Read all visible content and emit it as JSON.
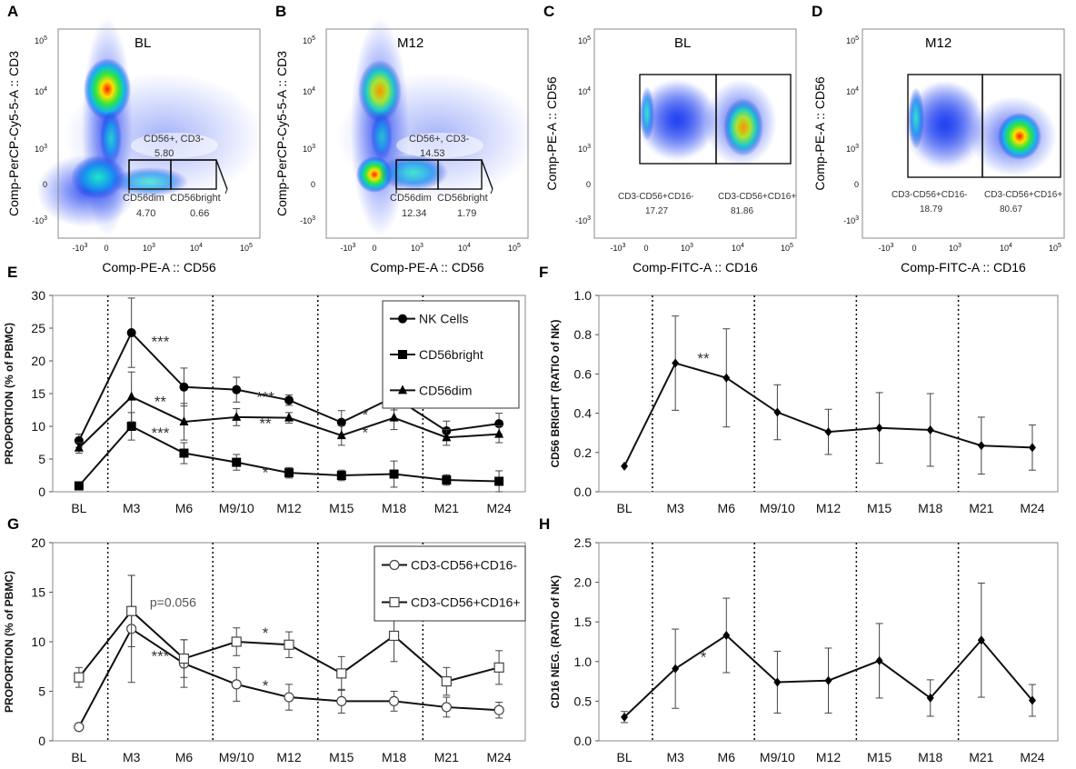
{
  "panels": {
    "A": "A",
    "B": "B",
    "C": "C",
    "D": "D",
    "E": "E",
    "F": "F",
    "G": "G",
    "H": "H"
  },
  "flow": {
    "A": {
      "title": "BL",
      "xlabel": "Comp-PE-A :: CD56",
      "ylabel": "Comp-PerCP-Cy5-5-A :: CD3",
      "gate_main_label": "CD56+, CD3-",
      "gate_main_value": "5.80",
      "gate_left_label": "CD56dim",
      "gate_left_value": "4.70",
      "gate_right_label": "CD56bright",
      "gate_right_value": "0.66"
    },
    "B": {
      "title": "M12",
      "xlabel": "Comp-PE-A :: CD56",
      "ylabel": "Comp-PerCP-Cy5-5-A :: CD3",
      "gate_main_label": "CD56+, CD3-",
      "gate_main_value": "14.53",
      "gate_left_label": "CD56dim",
      "gate_left_value": "12.34",
      "gate_right_label": "CD56bright",
      "gate_right_value": "1.79"
    },
    "C": {
      "title": "BL",
      "xlabel": "Comp-FITC-A :: CD16",
      "ylabel": "Comp-PE-A :: CD56",
      "gate_left_label": "CD3-CD56+CD16-",
      "gate_left_value": "17.27",
      "gate_right_label": "CD3-CD56+CD16+",
      "gate_right_value": "81.86"
    },
    "D": {
      "title": "M12",
      "xlabel": "Comp-FITC-A :: CD16",
      "ylabel": "Comp-PE-A :: CD56",
      "gate_left_label": "CD3-CD56+CD16-",
      "gate_left_value": "18.79",
      "gate_right_label": "CD3-CD56+CD16+",
      "gate_right_value": "80.67"
    }
  },
  "axis_ticks": {
    "exp": "5",
    "labels": [
      "-10",
      "0",
      "10",
      "10",
      "10",
      "10"
    ],
    "exps": [
      "3",
      "",
      "3",
      "4",
      "5",
      ""
    ]
  },
  "chart_data": [
    {
      "id": "E",
      "type": "line",
      "ylabel": "PROPORTION (% of PBMC)",
      "xlabel": "",
      "categories": [
        "BL",
        "M3",
        "M6",
        "M9/10",
        "M12",
        "M15",
        "M18",
        "M21",
        "M24"
      ],
      "ylim": [
        0,
        30
      ],
      "yticks": [
        "0",
        "5",
        "10",
        "15",
        "20",
        "25",
        "30"
      ],
      "series": [
        {
          "name": "NK Cells",
          "marker": "circle",
          "values": [
            7.8,
            24.3,
            16.0,
            15.6,
            14.0,
            10.6,
            14.5,
            9.3,
            10.4
          ],
          "err": [
            1.0,
            5.3,
            2.9,
            1.9,
            0.8,
            1.8,
            2.0,
            1.5,
            1.6
          ]
        },
        {
          "name": "CD56bright",
          "marker": "square",
          "values": [
            0.9,
            10.0,
            5.9,
            4.5,
            2.9,
            2.5,
            2.7,
            1.8,
            1.6
          ],
          "err": [
            0.6,
            2.1,
            1.6,
            1.2,
            0.8,
            0.8,
            2.0,
            0.8,
            1.6
          ]
        },
        {
          "name": "CD56dim",
          "marker": "triangle",
          "values": [
            6.7,
            14.5,
            10.7,
            11.4,
            11.3,
            8.6,
            11.3,
            8.3,
            8.8
          ],
          "err": [
            0.8,
            3.8,
            2.8,
            1.3,
            0.8,
            1.5,
            1.8,
            1.2,
            1.3
          ]
        }
      ],
      "annotations": [
        {
          "text": "***",
          "x": 1.55,
          "y": 23.0
        },
        {
          "text": "**",
          "x": 1.55,
          "y": 13.8
        },
        {
          "text": "***",
          "x": 1.55,
          "y": 9.0
        },
        {
          "text": "***",
          "x": 3.55,
          "y": 14.5
        },
        {
          "text": "**",
          "x": 3.55,
          "y": 10.5
        },
        {
          "text": "*",
          "x": 3.55,
          "y": 3.0
        },
        {
          "text": "*",
          "x": 5.45,
          "y": 11.8
        },
        {
          "text": "*",
          "x": 5.45,
          "y": 9.1
        }
      ]
    },
    {
      "id": "F",
      "type": "line",
      "ylabel": "CD56 BRIGHT (RATIO of NK)",
      "xlabel": "",
      "categories": [
        "BL",
        "M3",
        "M6",
        "M9/10",
        "M12",
        "M15",
        "M18",
        "M21",
        "M24"
      ],
      "ylim": [
        0,
        1.0
      ],
      "yticks": [
        "0.0",
        "0.2",
        "0.4",
        "0.6",
        "0.8",
        "1.0"
      ],
      "series": [
        {
          "name": "CD56 bright ratio",
          "marker": "diamond",
          "values": [
            0.13,
            0.655,
            0.58,
            0.405,
            0.305,
            0.325,
            0.315,
            0.235,
            0.225
          ],
          "err": [
            0.0,
            0.24,
            0.25,
            0.14,
            0.115,
            0.18,
            0.185,
            0.145,
            0.115
          ]
        }
      ],
      "annotations": [
        {
          "text": "**",
          "x": 1.55,
          "y": 0.68
        }
      ]
    },
    {
      "id": "G",
      "type": "line",
      "ylabel": "PROPORTION (% of PBMC)",
      "xlabel": "",
      "categories": [
        "BL",
        "M3",
        "M6",
        "M9/10",
        "M12",
        "M15",
        "M18",
        "M21",
        "M24"
      ],
      "ylim": [
        0,
        20
      ],
      "yticks": [
        "0",
        "5",
        "10",
        "15",
        "20"
      ],
      "series": [
        {
          "name": "CD3-CD56+CD16-",
          "marker": "open-circle",
          "values": [
            1.4,
            11.3,
            7.8,
            5.7,
            4.4,
            4.0,
            4.0,
            3.4,
            3.1
          ],
          "err": [
            0.0,
            5.4,
            2.4,
            1.7,
            1.3,
            1.2,
            1.0,
            1.0,
            0.8
          ]
        },
        {
          "name": "CD3-CD56+CD16+",
          "marker": "open-square",
          "values": [
            6.4,
            13.1,
            8.3,
            10.0,
            9.7,
            6.8,
            10.6,
            6.0,
            7.4
          ],
          "err": [
            1.0,
            3.6,
            1.9,
            1.4,
            1.3,
            1.7,
            2.6,
            1.4,
            1.7
          ]
        }
      ],
      "annotations": [
        {
          "text": "p=0.056",
          "x": 1.35,
          "y": 14.1,
          "anchor": "start",
          "muted": true
        },
        {
          "text": "***",
          "x": 1.55,
          "y": 8.6
        },
        {
          "text": "*",
          "x": 3.55,
          "y": 10.9
        },
        {
          "text": "*",
          "x": 3.55,
          "y": 5.6
        }
      ]
    },
    {
      "id": "H",
      "type": "line",
      "ylabel": "CD16 NEG. (RATIO of NK)",
      "xlabel": "",
      "categories": [
        "BL",
        "M3",
        "M6",
        "M9/10",
        "M12",
        "M15",
        "M18",
        "M21",
        "M24"
      ],
      "ylim": [
        0,
        2.5
      ],
      "yticks": [
        "0.0",
        "0.5",
        "1.0",
        "1.5",
        "2.0",
        "2.5"
      ],
      "series": [
        {
          "name": "CD16 negative ratio",
          "marker": "diamond",
          "values": [
            0.3,
            0.91,
            1.33,
            0.74,
            0.76,
            1.01,
            0.54,
            1.27,
            0.51
          ],
          "err": [
            0.07,
            0.5,
            0.47,
            0.39,
            0.41,
            0.47,
            0.23,
            0.72,
            0.2
          ]
        }
      ],
      "annotations": [
        {
          "text": "*",
          "x": 1.55,
          "y": 1.06
        }
      ]
    }
  ]
}
